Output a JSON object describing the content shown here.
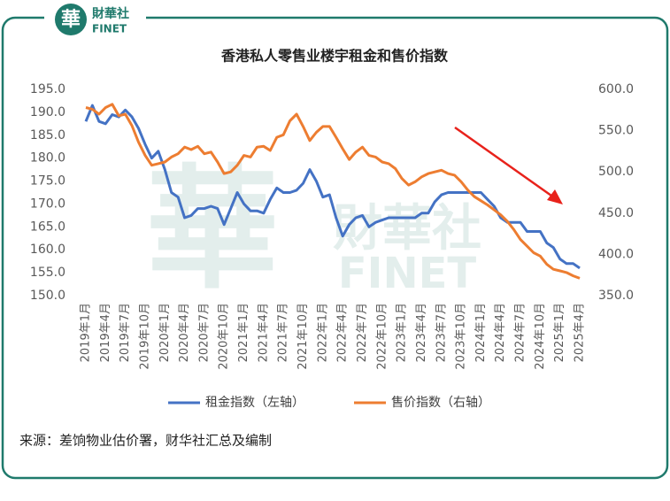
{
  "logo": {
    "mark": "華",
    "name": "財華社",
    "sub": "FINET"
  },
  "chart_data": {
    "type": "line",
    "title": "香港私人零售业楼宇租金和售价指数",
    "source": "来源：差饷物业估价署，财华社汇总及编制",
    "categories": [
      "2019年1月",
      null,
      null,
      "2019年4月",
      null,
      null,
      "2019年7月",
      null,
      null,
      "2019年10月",
      null,
      null,
      "2020年1月",
      null,
      null,
      "2020年4月",
      null,
      null,
      "2020年7月",
      null,
      null,
      "2020年10月",
      null,
      null,
      "2021年1月",
      null,
      null,
      "2021年4月",
      null,
      null,
      "2021年7月",
      null,
      null,
      "2021年10月",
      null,
      null,
      "2022年1月",
      null,
      null,
      "2022年4月",
      null,
      null,
      "2022年7月",
      null,
      null,
      "2022年10月",
      null,
      null,
      "2023年1月",
      null,
      null,
      "2023年4月",
      null,
      null,
      "2023年7月",
      null,
      null,
      "2023年10月",
      null,
      null,
      "2024年1月",
      null,
      null,
      "2024年4月",
      null,
      null,
      "2024年7月",
      null,
      null,
      "2024年10月",
      null,
      null,
      "2025年1月",
      null,
      null,
      "2025年4月"
    ],
    "series": [
      {
        "name": "租金指数（左轴）",
        "color": "#4472c4",
        "axis": "y",
        "values": [
          188,
          191.5,
          188,
          187.5,
          189.5,
          189,
          190.5,
          189,
          186.5,
          183,
          180,
          181.5,
          177.5,
          172.5,
          171.5,
          167,
          167.5,
          169,
          169,
          169.5,
          169,
          165.5,
          169,
          172.5,
          170,
          168.5,
          168.5,
          168,
          171,
          173.5,
          172.5,
          172.5,
          173,
          174.5,
          177.5,
          175,
          171.5,
          172,
          167,
          163,
          165.5,
          167,
          167.5,
          165,
          166,
          166.5,
          167,
          167,
          167,
          167,
          167,
          168,
          168,
          170.5,
          172,
          172.5,
          172.5,
          172.5,
          172.5,
          172.5,
          172.5,
          171,
          169.5,
          167,
          166,
          166,
          166,
          164,
          164,
          164,
          161.5,
          160.5,
          158,
          157,
          157,
          156
        ]
      },
      {
        "name": "售价指数（右轴）",
        "color": "#ed7d31",
        "axis": "y2",
        "values": [
          578,
          576,
          570,
          578,
          582,
          568,
          570,
          556,
          536,
          520,
          508,
          510,
          512,
          518,
          522,
          530,
          527,
          531,
          522,
          524,
          512,
          498,
          500,
          508,
          520,
          518,
          530,
          531,
          526,
          542,
          545,
          562,
          570,
          555,
          538,
          548,
          555,
          555,
          542,
          528,
          515,
          524,
          530,
          520,
          518,
          512,
          510,
          504,
          492,
          484,
          488,
          494,
          498,
          500,
          502,
          498,
          496,
          488,
          478,
          470,
          465,
          460,
          454,
          448,
          440,
          430,
          418,
          410,
          402,
          398,
          388,
          382,
          380,
          378,
          374,
          371
        ]
      }
    ],
    "ylim": [
      150,
      195
    ],
    "yticks": [
      {
        "value": 150,
        "label": "150.0"
      },
      {
        "value": 155,
        "label": "155.0"
      },
      {
        "value": 160,
        "label": "160.0"
      },
      {
        "value": 165,
        "label": "165.0"
      },
      {
        "value": 170,
        "label": "170.0"
      },
      {
        "value": 175,
        "label": "175.0"
      },
      {
        "value": 180,
        "label": "180.0"
      },
      {
        "value": 185,
        "label": "185.0"
      },
      {
        "value": 190,
        "label": "190.0"
      },
      {
        "value": 195,
        "label": "195.0"
      }
    ],
    "y2lim": [
      350,
      600
    ],
    "y2ticks": [
      {
        "value": 350,
        "label": "350.0"
      },
      {
        "value": 400,
        "label": "400.0"
      },
      {
        "value": 450,
        "label": "450.0"
      },
      {
        "value": 500,
        "label": "500.0"
      },
      {
        "value": 550,
        "label": "550.0"
      },
      {
        "value": 600,
        "label": "600.0"
      }
    ],
    "legend": "bottom",
    "grid": false
  }
}
